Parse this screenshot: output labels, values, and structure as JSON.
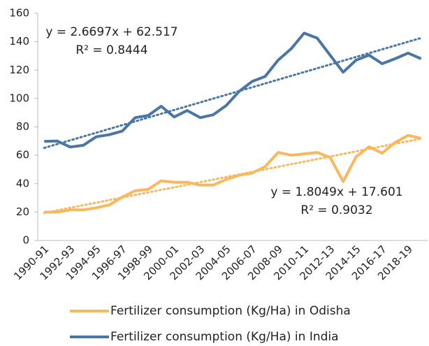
{
  "chart_data": {
    "type": "line",
    "categories": [
      "1990-91",
      null,
      "1992-93",
      null,
      "1994-95",
      null,
      "1996-97",
      null,
      "1998-99",
      null,
      "2000-01",
      null,
      "2002-03",
      null,
      "2004-05",
      null,
      "2006-07",
      null,
      "2008-09",
      null,
      "2010-11",
      null,
      "2012-13",
      null,
      "2014-15",
      null,
      "2016-17",
      null,
      "2018-19",
      null
    ],
    "series": [
      {
        "name": "Fertilizer consumption (Kg/Ha) in Odisha",
        "color": "#f9b75e",
        "values": [
          20,
          20,
          21.5,
          21.5,
          23,
          25,
          30.5,
          35,
          36,
          42,
          41,
          41,
          39,
          39,
          43,
          46,
          47.5,
          52,
          62,
          60,
          61,
          62,
          58.5,
          41.5,
          59,
          66,
          61.5,
          69,
          74,
          72
        ],
        "trend": {
          "slope": 1.8049,
          "intercept": 17.601,
          "equation": "y = 1.8049x + 17.601",
          "r2": "R² = 0.9032"
        }
      },
      {
        "name": "Fertilizer consumption (Kg/Ha) in India",
        "color": "#4a76a3",
        "values": [
          69.8,
          70,
          65.8,
          67,
          73,
          74.5,
          77,
          86.5,
          88,
          94.5,
          87,
          91.5,
          86.5,
          88.5,
          95,
          105,
          112,
          115.5,
          127,
          135,
          146,
          142.5,
          130.5,
          118.5,
          127,
          130.5,
          124.5,
          128,
          132,
          128
        ],
        "trend": {
          "slope": 2.6697,
          "intercept": 62.517,
          "equation": "y = 2.6697x + 62.517",
          "r2": "R² = 0.8444"
        }
      }
    ],
    "ylim": [
      0,
      160
    ],
    "yticks": [
      0,
      20,
      40,
      60,
      80,
      100,
      120,
      140,
      160
    ],
    "grid": false
  }
}
